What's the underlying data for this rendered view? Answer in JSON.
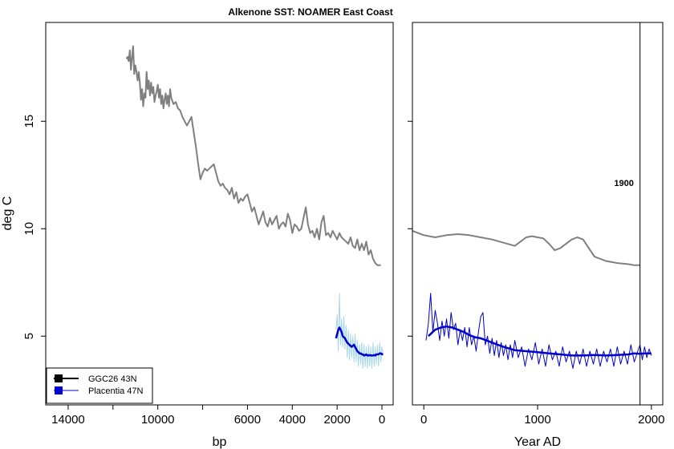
{
  "chart_data": {
    "type": "line",
    "title": "Alkenone SST: NOAMER East Coast",
    "ylabel": "deg C",
    "ylim": [
      1.8,
      19.6
    ],
    "yticks": [
      5,
      10,
      15
    ],
    "colors": {
      "gray": "#7f7f7f",
      "blue": "#0000cc",
      "lightblue": "#a8d8e8",
      "black": "#000000"
    },
    "legend": {
      "position": "bottom-left",
      "entries": [
        {
          "label": "GGC26 43N",
          "color": "#000000"
        },
        {
          "label": "Placentia 47N",
          "color": "#0000cc"
        }
      ]
    },
    "panels": [
      {
        "name": "bp",
        "xlabel": "bp",
        "xlim": [
          15000,
          -500
        ],
        "xticks": [
          14000,
          10000,
          6000,
          4000,
          2000,
          0
        ],
        "minor_xticks": [
          12000,
          8000
        ],
        "series": [
          {
            "name": "GGC26 43N (gray)",
            "color": "#7f7f7f",
            "x": [
              11400,
              11350,
              11300,
              11250,
              11200,
              11150,
              11100,
              11050,
              11000,
              10950,
              10900,
              10850,
              10800,
              10750,
              10700,
              10650,
              10600,
              10550,
              10500,
              10450,
              10400,
              10350,
              10300,
              10250,
              10200,
              10150,
              10100,
              10050,
              10000,
              9950,
              9900,
              9850,
              9800,
              9750,
              9700,
              9650,
              9600,
              9550,
              9500,
              9450,
              9400,
              9300,
              9200,
              9100,
              9000,
              8900,
              8800,
              8700,
              8600,
              8500,
              8400,
              8300,
              8200,
              8100,
              8000,
              7900,
              7800,
              7700,
              7600,
              7500,
              7400,
              7300,
              7200,
              7100,
              7000,
              6900,
              6800,
              6700,
              6600,
              6500,
              6400,
              6300,
              6200,
              6100,
              6000,
              5900,
              5800,
              5700,
              5600,
              5500,
              5400,
              5300,
              5200,
              5100,
              5000,
              4900,
              4800,
              4700,
              4600,
              4500,
              4400,
              4300,
              4200,
              4100,
              4000,
              3900,
              3800,
              3700,
              3600,
              3500,
              3400,
              3300,
              3200,
              3100,
              3000,
              2900,
              2800,
              2700,
              2600,
              2500,
              2400,
              2300,
              2200,
              2100,
              2000,
              1900,
              1800,
              1700,
              1600,
              1500,
              1400,
              1300,
              1200,
              1100,
              1000,
              900,
              800,
              700,
              600,
              500,
              400,
              300,
              200,
              100,
              50
            ],
            "y": [
              17.9,
              18.0,
              17.8,
              18.3,
              17.4,
              18.0,
              18.5,
              17.2,
              17.6,
              17.3,
              16.9,
              17.3,
              16.8,
              16.0,
              16.5,
              15.7,
              16.3,
              16.1,
              17.3,
              16.5,
              16.9,
              16.2,
              16.8,
              16.3,
              16.6,
              15.9,
              16.2,
              16.4,
              16.7,
              16.1,
              16.5,
              15.8,
              16.2,
              15.6,
              16.0,
              16.3,
              15.8,
              16.2,
              15.7,
              16.5,
              16.1,
              15.8,
              15.9,
              15.6,
              15.5,
              15.2,
              15.0,
              14.8,
              15.0,
              15.2,
              14.5,
              13.8,
              13.0,
              12.3,
              12.6,
              12.8,
              12.7,
              12.8,
              12.9,
              13.0,
              12.6,
              12.2,
              12.0,
              12.1,
              11.9,
              11.8,
              11.6,
              11.9,
              11.4,
              11.7,
              11.2,
              11.4,
              11.3,
              11.5,
              11.6,
              11.2,
              10.8,
              11.0,
              10.6,
              10.2,
              10.5,
              10.8,
              10.3,
              10.1,
              10.5,
              10.2,
              10.4,
              10.6,
              10.0,
              10.2,
              10.3,
              10.1,
              10.7,
              10.4,
              9.8,
              10.2,
              10.1,
              9.9,
              10.0,
              10.5,
              11.0,
              10.2,
              9.8,
              9.9,
              9.6,
              10.0,
              9.5,
              10.3,
              10.6,
              9.7,
              9.8,
              9.6,
              9.9,
              9.7,
              9.5,
              9.8,
              9.6,
              9.5,
              9.4,
              9.3,
              9.6,
              9.2,
              9.1,
              9.5,
              9.0,
              9.3,
              9.0,
              9.4,
              8.8,
              9.0,
              8.6,
              8.4,
              8.3,
              8.3,
              8.3
            ]
          },
          {
            "name": "Placentia 47N (smoothed)",
            "color": "#0000cc",
            "x": [
              2050,
              2000,
              1950,
              1900,
              1850,
              1800,
              1750,
              1700,
              1650,
              1600,
              1550,
              1500,
              1450,
              1400,
              1350,
              1300,
              1250,
              1200,
              1150,
              1100,
              1050,
              1000,
              950,
              900,
              850,
              800,
              750,
              700,
              650,
              600,
              550,
              500,
              450,
              400,
              350,
              300,
              250,
              200,
              150,
              100,
              50,
              0,
              -50
            ],
            "y": [
              4.9,
              5.1,
              5.3,
              5.4,
              5.3,
              5.2,
              5.0,
              4.95,
              4.9,
              4.8,
              4.7,
              4.65,
              4.6,
              4.55,
              4.5,
              4.55,
              4.6,
              4.5,
              4.4,
              4.3,
              4.25,
              4.2,
              4.2,
              4.15,
              4.15,
              4.1,
              4.12,
              4.15,
              4.1,
              4.1,
              4.12,
              4.1,
              4.1,
              4.1,
              4.12,
              4.1,
              4.15,
              4.15,
              4.15,
              4.2,
              4.2,
              4.15,
              4.18
            ]
          },
          {
            "name": "Placentia 47N (raw)",
            "color": "#a8d8e8",
            "x": [
              2050,
              2000,
              1950,
              1900,
              1850,
              1800,
              1750,
              1700,
              1650,
              1600,
              1550,
              1500,
              1450,
              1400,
              1350,
              1300,
              1250,
              1200,
              1150,
              1100,
              1050,
              1000,
              950,
              900,
              850,
              800,
              750,
              700,
              650,
              600,
              550,
              500,
              450,
              400,
              350,
              300,
              250,
              200,
              150,
              100,
              50,
              0,
              -50
            ],
            "y": [
              5.3,
              6.0,
              4.3,
              7.0,
              4.6,
              5.8,
              4.5,
              5.9,
              4.4,
              5.5,
              4.0,
              5.3,
              3.9,
              5.1,
              4.0,
              5.0,
              3.8,
              5.1,
              3.8,
              4.8,
              3.6,
              4.6,
              3.7,
              4.7,
              3.5,
              4.6,
              3.6,
              4.5,
              3.5,
              4.6,
              3.6,
              4.5,
              3.5,
              4.7,
              3.6,
              4.5,
              3.7,
              4.6,
              3.6,
              4.7,
              3.8,
              4.5,
              4.2
            ]
          }
        ]
      },
      {
        "name": "year",
        "xlabel": "Year AD",
        "xlim": [
          -100,
          2100
        ],
        "xticks": [
          0,
          1000,
          2000
        ],
        "vline": 1900,
        "annotation": "1900",
        "series": [
          {
            "name": "GGC26 43N (gray)",
            "color": "#7f7f7f",
            "x": [
              -100,
              0,
              100,
              200,
              300,
              400,
              500,
              600,
              700,
              800,
              850,
              900,
              950,
              1000,
              1050,
              1100,
              1150,
              1200,
              1300,
              1350,
              1400,
              1450,
              1500,
              1600,
              1700,
              1800,
              1850,
              1900
            ],
            "y": [
              9.9,
              9.7,
              9.6,
              9.7,
              9.75,
              9.7,
              9.6,
              9.5,
              9.35,
              9.2,
              9.4,
              9.6,
              9.65,
              9.6,
              9.55,
              9.3,
              9.0,
              9.1,
              9.5,
              9.6,
              9.5,
              9.1,
              8.7,
              8.5,
              8.4,
              8.35,
              8.3,
              8.3
            ]
          },
          {
            "name": "Placentia 47N (smoothed)",
            "color": "#0000cc",
            "x": [
              40,
              100,
              150,
              200,
              250,
              300,
              350,
              400,
              450,
              500,
              550,
              600,
              650,
              700,
              800,
              900,
              1000,
              1100,
              1200,
              1300,
              1400,
              1500,
              1600,
              1700,
              1800,
              1850,
              1900,
              1950,
              2000
            ],
            "y": [
              5.0,
              5.3,
              5.4,
              5.45,
              5.4,
              5.3,
              5.2,
              5.05,
              4.95,
              4.9,
              4.8,
              4.7,
              4.6,
              4.5,
              4.35,
              4.3,
              4.25,
              4.2,
              4.15,
              4.1,
              4.1,
              4.12,
              4.1,
              4.12,
              4.15,
              4.2,
              4.18,
              4.2,
              4.2
            ]
          },
          {
            "name": "Placentia 47N (raw)",
            "color": "#0000cc",
            "x": [
              20,
              40,
              60,
              80,
              100,
              120,
              140,
              160,
              180,
              200,
              220,
              240,
              260,
              280,
              300,
              320,
              340,
              360,
              380,
              400,
              420,
              440,
              460,
              480,
              500,
              520,
              540,
              560,
              580,
              600,
              620,
              640,
              660,
              680,
              700,
              720,
              740,
              760,
              780,
              800,
              830,
              860,
              890,
              920,
              950,
              980,
              1010,
              1040,
              1070,
              1100,
              1130,
              1160,
              1190,
              1220,
              1250,
              1280,
              1310,
              1340,
              1370,
              1400,
              1430,
              1460,
              1490,
              1520,
              1550,
              1580,
              1610,
              1640,
              1670,
              1700,
              1730,
              1760,
              1790,
              1820,
              1850,
              1880,
              1900,
              1920,
              1940,
              1960,
              1980,
              2000
            ],
            "y": [
              4.8,
              5.6,
              7.0,
              5.2,
              6.2,
              5.6,
              4.8,
              5.7,
              5.0,
              5.8,
              4.9,
              6.1,
              5.3,
              5.6,
              4.6,
              5.3,
              4.8,
              5.4,
              4.5,
              5.4,
              4.6,
              5.0,
              4.3,
              5.2,
              5.9,
              6.1,
              4.6,
              5.0,
              4.2,
              4.9,
              4.1,
              4.8,
              4.0,
              4.7,
              4.1,
              4.6,
              3.9,
              4.6,
              4.0,
              4.8,
              4.0,
              4.5,
              3.6,
              4.4,
              3.9,
              4.7,
              3.7,
              4.4,
              3.6,
              4.6,
              3.9,
              4.3,
              3.6,
              4.5,
              3.8,
              4.3,
              3.5,
              4.3,
              3.7,
              4.4,
              3.6,
              4.3,
              3.7,
              4.4,
              3.6,
              4.3,
              3.8,
              4.4,
              3.6,
              4.5,
              3.7,
              4.3,
              3.7,
              4.6,
              3.8,
              4.3,
              4.6,
              3.9,
              4.5,
              4.0,
              4.4,
              4.1
            ]
          }
        ]
      }
    ]
  }
}
